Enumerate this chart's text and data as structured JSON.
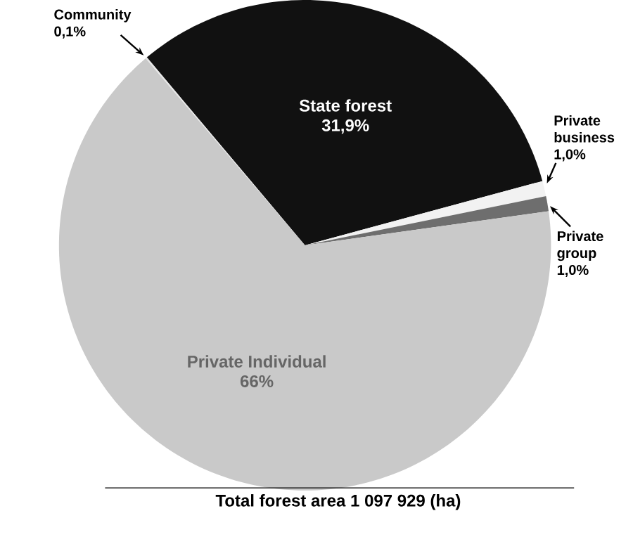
{
  "chart_data": {
    "type": "pie",
    "categories": [
      "State forest",
      "Private business",
      "Private group",
      "Private Individual",
      "Community"
    ],
    "values": [
      31.9,
      1.0,
      1.0,
      66,
      0.1
    ],
    "value_labels": [
      "31,9%",
      "1,0%",
      "1,0%",
      "66%",
      "0,1%"
    ],
    "colors": [
      "#111111",
      "#f2f2f2",
      "#6e6e6e",
      "#c9c9c9",
      "#e6e6e6"
    ],
    "annotations": [
      "Total forest area 1 097 929 (ha)"
    ]
  }
}
